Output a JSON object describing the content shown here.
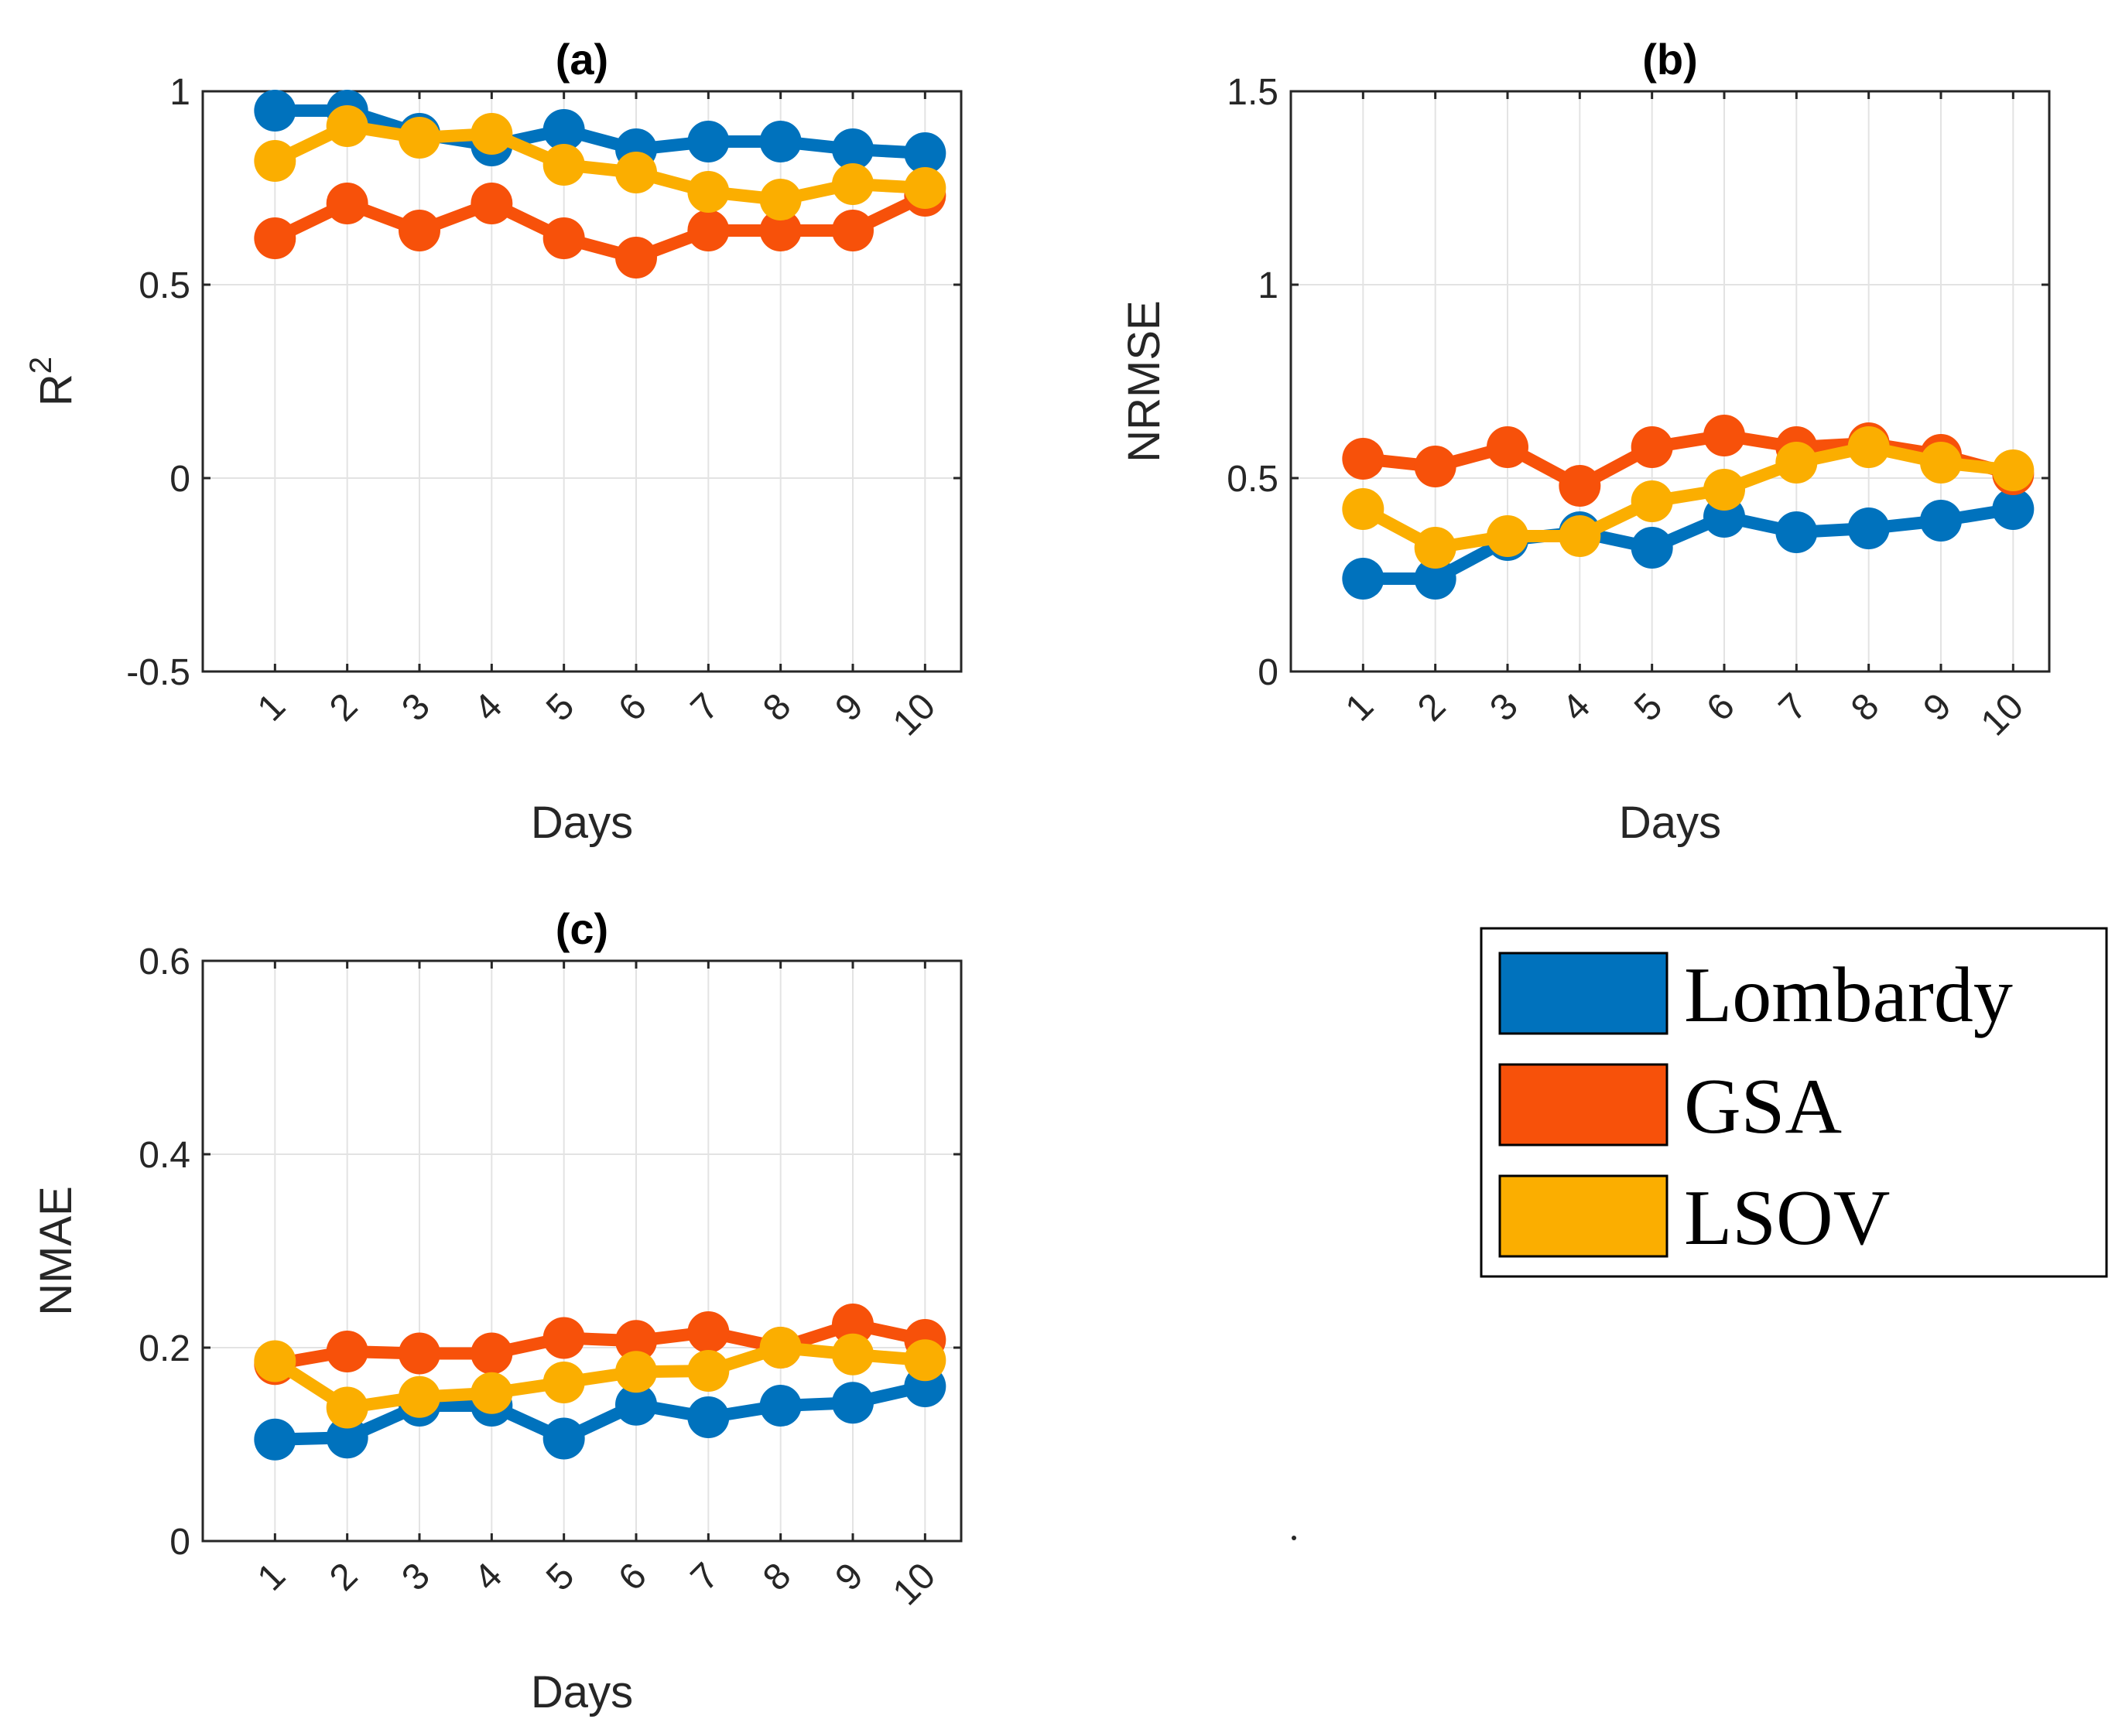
{
  "chart_data": [
    {
      "type": "line",
      "panel": "(a)",
      "title": "(a)",
      "xlabel": "Days",
      "ylabel": "R",
      "ylabel_superscript": "2",
      "categories": [
        "1",
        "2",
        "3",
        "4",
        "5",
        "6",
        "7",
        "8",
        "9",
        "10"
      ],
      "ylim": [
        -0.5,
        1
      ],
      "yticks": [
        "-0.5",
        "0",
        "0.5",
        "1"
      ],
      "ytick_values": [
        -0.5,
        0,
        0.5,
        1
      ],
      "grid": true,
      "series": [
        {
          "name": "Lombardy",
          "values": [
            0.95,
            0.95,
            0.89,
            0.86,
            0.9,
            0.85,
            0.87,
            0.87,
            0.85,
            0.84
          ]
        },
        {
          "name": "GSA",
          "values": [
            0.62,
            0.71,
            0.64,
            0.71,
            0.62,
            0.57,
            0.64,
            0.64,
            0.64,
            0.73
          ]
        },
        {
          "name": "LSOV",
          "values": [
            0.82,
            0.91,
            0.88,
            0.89,
            0.81,
            0.79,
            0.74,
            0.72,
            0.76,
            0.75
          ]
        }
      ]
    },
    {
      "type": "line",
      "panel": "(b)",
      "title": "(b)",
      "xlabel": "Days",
      "ylabel": "NRMSE",
      "categories": [
        "1",
        "2",
        "3",
        "4",
        "5",
        "6",
        "7",
        "8",
        "9",
        "10"
      ],
      "ylim": [
        0,
        1.5
      ],
      "yticks": [
        "0",
        "0.5",
        "1",
        "1.5"
      ],
      "ytick_values": [
        0,
        0.5,
        1,
        1.5
      ],
      "grid": true,
      "series": [
        {
          "name": "Lombardy",
          "values": [
            0.24,
            0.24,
            0.34,
            0.36,
            0.32,
            0.4,
            0.36,
            0.37,
            0.39,
            0.42
          ]
        },
        {
          "name": "GSA",
          "values": [
            0.55,
            0.53,
            0.58,
            0.48,
            0.58,
            0.61,
            0.58,
            0.59,
            0.56,
            0.51
          ]
        },
        {
          "name": "LSOV",
          "values": [
            0.42,
            0.32,
            0.35,
            0.35,
            0.44,
            0.47,
            0.54,
            0.58,
            0.54,
            0.52
          ]
        }
      ]
    },
    {
      "type": "line",
      "panel": "(c)",
      "title": "(c)",
      "xlabel": "Days",
      "ylabel": "NMAE",
      "categories": [
        "1",
        "2",
        "3",
        "4",
        "5",
        "6",
        "7",
        "8",
        "9",
        "10"
      ],
      "ylim": [
        0,
        0.6
      ],
      "yticks": [
        "0",
        "0.2",
        "0.4",
        "0.6"
      ],
      "ytick_values": [
        0,
        0.2,
        0.4,
        0.6
      ],
      "grid": true,
      "series": [
        {
          "name": "Lombardy",
          "values": [
            0.105,
            0.107,
            0.14,
            0.14,
            0.106,
            0.141,
            0.128,
            0.14,
            0.143,
            0.16
          ]
        },
        {
          "name": "GSA",
          "values": [
            0.183,
            0.196,
            0.194,
            0.194,
            0.21,
            0.207,
            0.216,
            0.2,
            0.224,
            0.208
          ]
        },
        {
          "name": "LSOV",
          "values": [
            0.186,
            0.138,
            0.149,
            0.153,
            0.164,
            0.175,
            0.176,
            0.2,
            0.193,
            0.187
          ]
        }
      ]
    }
  ],
  "legend": {
    "position": "bottom-right",
    "entries": [
      {
        "label": "Lombardy",
        "color": "#0072BD"
      },
      {
        "label": "GSA",
        "color": "#F7510A"
      },
      {
        "label": "LSOV",
        "color": "#FBAE00"
      }
    ]
  },
  "colors": {
    "Lombardy": "#0072BD",
    "GSA": "#F7510A",
    "LSOV": "#FBAE00"
  }
}
